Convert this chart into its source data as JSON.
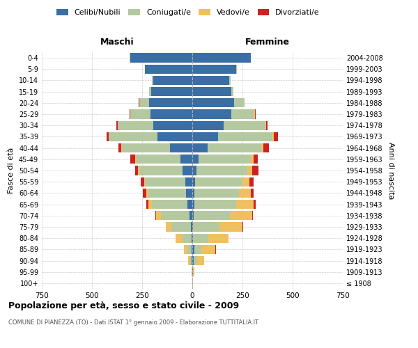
{
  "age_groups": [
    "100+",
    "95-99",
    "90-94",
    "85-89",
    "80-84",
    "75-79",
    "70-74",
    "65-69",
    "60-64",
    "55-59",
    "50-54",
    "45-49",
    "40-44",
    "35-39",
    "30-34",
    "25-29",
    "20-24",
    "15-19",
    "10-14",
    "5-9",
    "0-4"
  ],
  "birth_years": [
    "≤ 1908",
    "1909-1913",
    "1914-1918",
    "1919-1923",
    "1924-1928",
    "1929-1933",
    "1934-1938",
    "1939-1943",
    "1944-1948",
    "1949-1953",
    "1954-1958",
    "1959-1963",
    "1964-1968",
    "1969-1973",
    "1974-1978",
    "1979-1983",
    "1984-1988",
    "1989-1993",
    "1994-1998",
    "1999-2003",
    "2004-2008"
  ],
  "colors": {
    "celibi": "#3a6ea5",
    "coniugati": "#b5c9a0",
    "vedovi": "#f0c060",
    "divorziati": "#cc2222"
  },
  "male": {
    "celibi": [
      0,
      0,
      2,
      3,
      5,
      8,
      15,
      25,
      30,
      35,
      50,
      60,
      110,
      175,
      195,
      210,
      215,
      205,
      195,
      235,
      310
    ],
    "coniugati": [
      0,
      2,
      10,
      20,
      45,
      95,
      140,
      175,
      190,
      200,
      215,
      220,
      240,
      240,
      175,
      100,
      50,
      10,
      5,
      2,
      2
    ],
    "vedovi": [
      0,
      2,
      10,
      20,
      35,
      30,
      25,
      20,
      10,
      5,
      5,
      3,
      3,
      2,
      2,
      0,
      0,
      0,
      0,
      0,
      0
    ],
    "divorziati": [
      0,
      0,
      0,
      0,
      0,
      0,
      5,
      10,
      15,
      18,
      15,
      25,
      15,
      10,
      5,
      2,
      2,
      0,
      0,
      0,
      0
    ]
  },
  "female": {
    "celibi": [
      0,
      2,
      8,
      10,
      5,
      5,
      8,
      10,
      12,
      15,
      20,
      30,
      75,
      130,
      155,
      195,
      210,
      195,
      185,
      220,
      290
    ],
    "coniugati": [
      0,
      2,
      15,
      35,
      75,
      130,
      180,
      210,
      220,
      235,
      255,
      260,
      270,
      270,
      210,
      115,
      50,
      10,
      5,
      2,
      2
    ],
    "vedovi": [
      2,
      8,
      35,
      70,
      100,
      115,
      110,
      85,
      60,
      35,
      25,
      15,
      8,
      5,
      3,
      2,
      0,
      0,
      0,
      0,
      0
    ],
    "divorziati": [
      0,
      0,
      0,
      2,
      2,
      5,
      5,
      10,
      12,
      22,
      30,
      22,
      30,
      22,
      8,
      5,
      2,
      0,
      0,
      0,
      0
    ]
  },
  "title": "Popolazione per età, sesso e stato civile - 2009",
  "subtitle": "COMUNE DI PIANEZZA (TO) - Dati ISTAT 1° gennaio 2009 - Elaborazione TUTTITALIA.IT",
  "ylabel_left": "Fasce di età",
  "ylabel_right": "Anni di nascita",
  "xlabel_left": "Maschi",
  "xlabel_right": "Femmine",
  "xlim": 750,
  "legend_labels": [
    "Celibi/Nubili",
    "Coniugati/e",
    "Vedovi/e",
    "Divorziati/e"
  ],
  "bg_color": "#ffffff",
  "grid_color": "#cccccc"
}
